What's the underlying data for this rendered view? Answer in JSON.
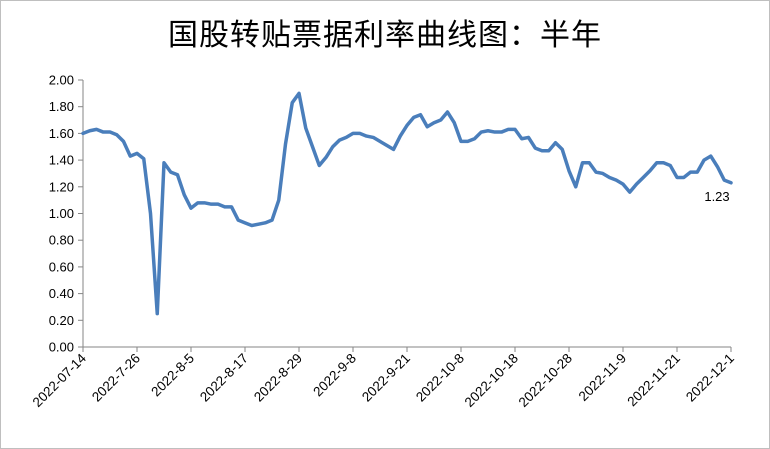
{
  "chart_data": {
    "type": "line",
    "title": "国股转贴票据利率曲线图：半年",
    "xlabel": "",
    "ylabel": "",
    "ylim": [
      0,
      2
    ],
    "yticks": [
      "0.00",
      "0.20",
      "0.40",
      "0.60",
      "0.80",
      "1.00",
      "1.20",
      "1.40",
      "1.60",
      "1.80",
      "2.00"
    ],
    "xticks": [
      "2022-07-14",
      "2022-7-26",
      "2022-8-5",
      "2022-8-17",
      "2022-8-29",
      "2022-9-8",
      "2022-9-21",
      "2022-10-8",
      "2022-10-18",
      "2022-10-28",
      "2022-11-9",
      "2022-11-21",
      "2022-12-1"
    ],
    "grid": false,
    "legend": "none",
    "line_color": "#4a7ebb",
    "series": [
      {
        "values": [
          1.6,
          1.62,
          1.63,
          1.61,
          1.61,
          1.59,
          1.54,
          1.43,
          1.45,
          1.41,
          1.0,
          0.25,
          1.38,
          1.31,
          1.29,
          1.14,
          1.04,
          1.08,
          1.08,
          1.07,
          1.07,
          1.05,
          1.05,
          0.95,
          0.93,
          0.91,
          0.92,
          0.93,
          0.95,
          1.1,
          1.52,
          1.83,
          1.9,
          1.64,
          1.5,
          1.36,
          1.42,
          1.5,
          1.55,
          1.57,
          1.6,
          1.6,
          1.58,
          1.57,
          1.54,
          1.51,
          1.48,
          1.58,
          1.66,
          1.72,
          1.74,
          1.65,
          1.68,
          1.7,
          1.76,
          1.68,
          1.54,
          1.54,
          1.56,
          1.61,
          1.62,
          1.61,
          1.61,
          1.63,
          1.63,
          1.56,
          1.57,
          1.49,
          1.47,
          1.47,
          1.53,
          1.48,
          1.32,
          1.2,
          1.38,
          1.38,
          1.31,
          1.3,
          1.27,
          1.25,
          1.22,
          1.16,
          1.22,
          1.27,
          1.32,
          1.38,
          1.38,
          1.36,
          1.27,
          1.27,
          1.31,
          1.31,
          1.4,
          1.43,
          1.35,
          1.25,
          1.23
        ]
      }
    ],
    "last_label": "1.23"
  }
}
